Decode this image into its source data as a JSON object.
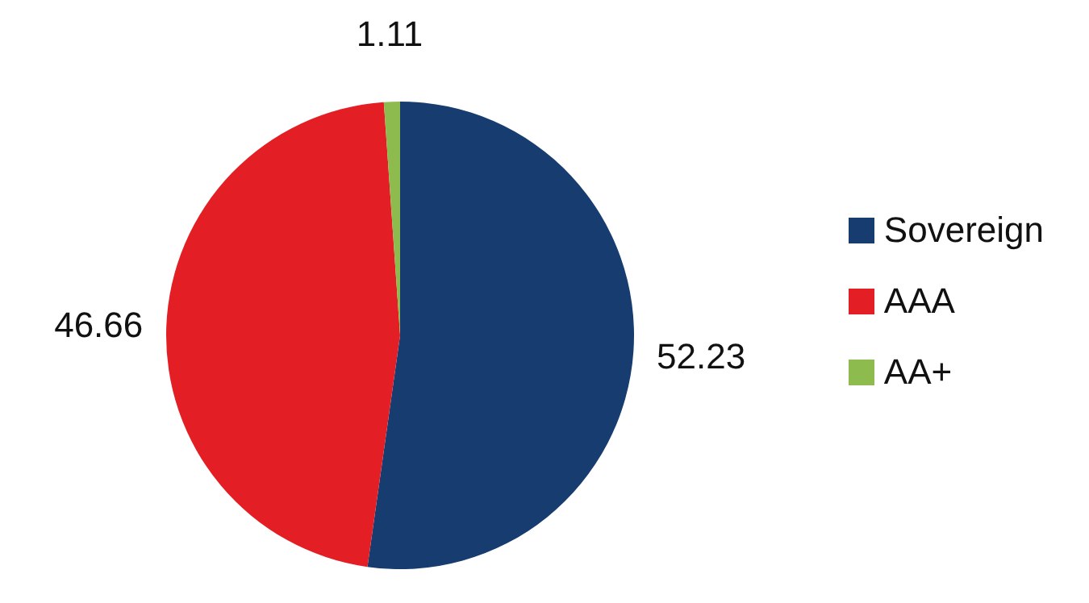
{
  "chart_data": {
    "type": "pie",
    "categories": [
      "Sovereign",
      "AAA",
      "AA+"
    ],
    "values": [
      52.23,
      46.66,
      1.11
    ],
    "colors": [
      "#173c70",
      "#e31e24",
      "#8dbb4e"
    ],
    "data_labels": true,
    "legend": "right"
  }
}
